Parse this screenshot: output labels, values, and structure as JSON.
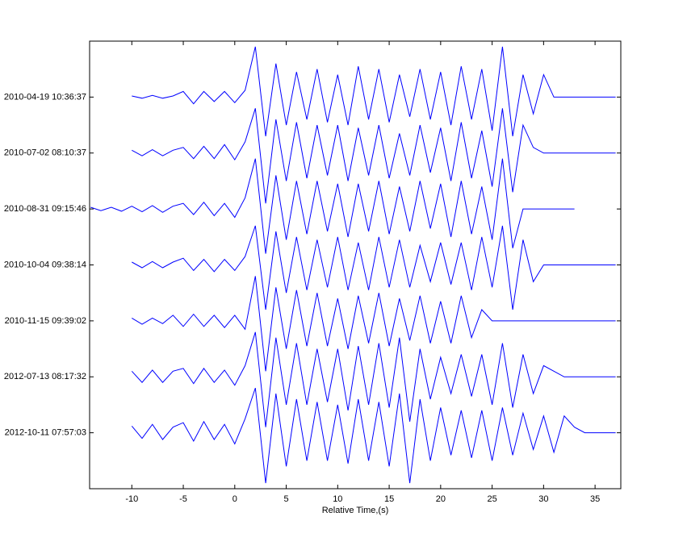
{
  "chart_data": {
    "type": "line",
    "xlabel": "Relative Time,(s)",
    "xlim": [
      -14.1,
      37.5
    ],
    "ylim": [
      0,
      8
    ],
    "xticks": [
      -10,
      -5,
      0,
      5,
      10,
      15,
      20,
      25,
      30,
      35
    ],
    "yticks": [
      {
        "value": 7,
        "label": "2010-04-19 10:36:37"
      },
      {
        "value": 6,
        "label": "2010-07-02 08:10:37"
      },
      {
        "value": 5,
        "label": "2010-08-31 09:15:46"
      },
      {
        "value": 4,
        "label": "2010-10-04 09:38:14"
      },
      {
        "value": 3,
        "label": "2010-11-15 09:39:02"
      },
      {
        "value": 2,
        "label": "2012-07-13 08:17:32"
      },
      {
        "value": 1,
        "label": "2012-10-11 07:57:03"
      }
    ],
    "color": "#0000ff",
    "x": [
      -14,
      -13,
      -12,
      -11,
      -10,
      -9,
      -8,
      -7,
      -6,
      -5,
      -4,
      -3,
      -2,
      -1,
      0,
      1,
      2,
      3,
      4,
      5,
      6,
      7,
      8,
      9,
      10,
      11,
      12,
      13,
      14,
      15,
      16,
      17,
      18,
      19,
      20,
      21,
      22,
      23,
      24,
      25,
      26,
      27,
      28,
      29,
      30,
      31,
      32,
      33,
      34,
      35,
      36,
      37
    ],
    "series": [
      {
        "values": [
          null,
          null,
          null,
          null,
          0.02,
          -0.02,
          0.03,
          -0.02,
          0.02,
          0.1,
          -0.12,
          0.1,
          -0.08,
          0.1,
          -0.1,
          0.12,
          0.9,
          -0.7,
          0.6,
          -0.5,
          0.45,
          -0.4,
          0.5,
          -0.45,
          0.4,
          -0.5,
          0.55,
          -0.4,
          0.5,
          -0.45,
          0.4,
          -0.35,
          0.5,
          -0.4,
          0.45,
          -0.5,
          0.55,
          -0.4,
          0.5,
          -0.6,
          0.9,
          -0.7,
          0.4,
          -0.3,
          0.4,
          0,
          0,
          0,
          0,
          0,
          0,
          0
        ]
      },
      {
        "values": [
          null,
          null,
          null,
          null,
          0.05,
          -0.05,
          0.06,
          -0.05,
          0.05,
          0.1,
          -0.1,
          0.12,
          -0.1,
          0.15,
          -0.12,
          0.2,
          0.8,
          -0.9,
          0.6,
          -0.5,
          0.55,
          -0.45,
          0.5,
          -0.4,
          0.5,
          -0.5,
          0.45,
          -0.4,
          0.5,
          -0.45,
          0.35,
          -0.4,
          0.5,
          -0.35,
          0.45,
          -0.5,
          0.55,
          -0.45,
          0.4,
          -0.6,
          0.8,
          -0.7,
          0.5,
          0.1,
          0,
          0,
          0,
          0,
          0,
          0,
          0,
          0
        ]
      },
      {
        "values": [
          0.03,
          -0.03,
          0.03,
          -0.04,
          0.05,
          -0.05,
          0.06,
          -0.06,
          0.05,
          0.1,
          -0.1,
          0.12,
          -0.12,
          0.1,
          -0.15,
          0.2,
          0.9,
          -0.8,
          0.6,
          -0.55,
          0.5,
          -0.45,
          0.5,
          -0.4,
          0.45,
          -0.5,
          0.45,
          -0.4,
          0.5,
          -0.45,
          0.4,
          -0.4,
          0.5,
          -0.35,
          0.45,
          -0.5,
          0.5,
          -0.45,
          0.4,
          -0.55,
          0.9,
          -0.7,
          0,
          0,
          0,
          0,
          0,
          0,
          null,
          null,
          null,
          null
        ]
      },
      {
        "values": [
          null,
          null,
          null,
          null,
          0.05,
          -0.05,
          0.06,
          -0.05,
          0.05,
          0.12,
          -0.1,
          0.1,
          -0.12,
          0.1,
          -0.1,
          0.15,
          0.7,
          -0.8,
          0.6,
          -0.5,
          0.5,
          -0.45,
          0.45,
          -0.4,
          0.5,
          -0.45,
          0.4,
          -0.45,
          0.5,
          -0.4,
          0.45,
          -0.4,
          0.35,
          -0.3,
          0.4,
          -0.35,
          0.4,
          -0.45,
          0.5,
          -0.4,
          0.7,
          -0.8,
          0.45,
          -0.3,
          0,
          0,
          0,
          0,
          0,
          0,
          0,
          0
        ]
      },
      {
        "values": [
          null,
          null,
          null,
          null,
          0.05,
          -0.06,
          0.05,
          -0.05,
          0.1,
          -0.1,
          0.12,
          -0.1,
          0.1,
          -0.12,
          0.1,
          -0.15,
          0.8,
          -0.9,
          0.6,
          -0.5,
          0.55,
          -0.45,
          0.5,
          -0.45,
          0.4,
          -0.5,
          0.45,
          -0.4,
          0.5,
          -0.45,
          0.4,
          -0.35,
          0.45,
          -0.4,
          0.35,
          -0.4,
          0.45,
          -0.3,
          0.2,
          0,
          0,
          0,
          0,
          0,
          0,
          0,
          0,
          0,
          0,
          0,
          0,
          0
        ]
      },
      {
        "values": [
          null,
          null,
          null,
          null,
          0.1,
          -0.1,
          0.12,
          -0.1,
          0.1,
          0.15,
          -0.12,
          0.15,
          -0.1,
          0.12,
          -0.15,
          0.2,
          0.8,
          -0.9,
          0.7,
          -0.5,
          0.6,
          -0.5,
          0.5,
          -0.45,
          0.5,
          -0.6,
          0.55,
          -0.5,
          0.6,
          -0.55,
          0.7,
          -0.8,
          0.5,
          -0.4,
          0.35,
          -0.3,
          0.4,
          -0.35,
          0.4,
          -0.5,
          0.6,
          -0.55,
          0.4,
          -0.3,
          0.2,
          0.1,
          0,
          0,
          0,
          0,
          0,
          0
        ]
      },
      {
        "values": [
          null,
          null,
          null,
          null,
          0.12,
          -0.1,
          0.15,
          -0.12,
          0.1,
          0.18,
          -0.15,
          0.2,
          -0.12,
          0.15,
          -0.2,
          0.25,
          0.8,
          -0.9,
          0.7,
          -0.6,
          0.6,
          -0.5,
          0.55,
          -0.5,
          0.5,
          -0.55,
          0.6,
          -0.5,
          0.55,
          -0.6,
          0.7,
          -0.9,
          0.6,
          -0.5,
          0.45,
          -0.4,
          0.4,
          -0.45,
          0.4,
          -0.5,
          0.45,
          -0.4,
          0.35,
          -0.3,
          0.3,
          -0.35,
          0.3,
          0.1,
          0,
          0,
          0,
          0
        ]
      }
    ]
  }
}
